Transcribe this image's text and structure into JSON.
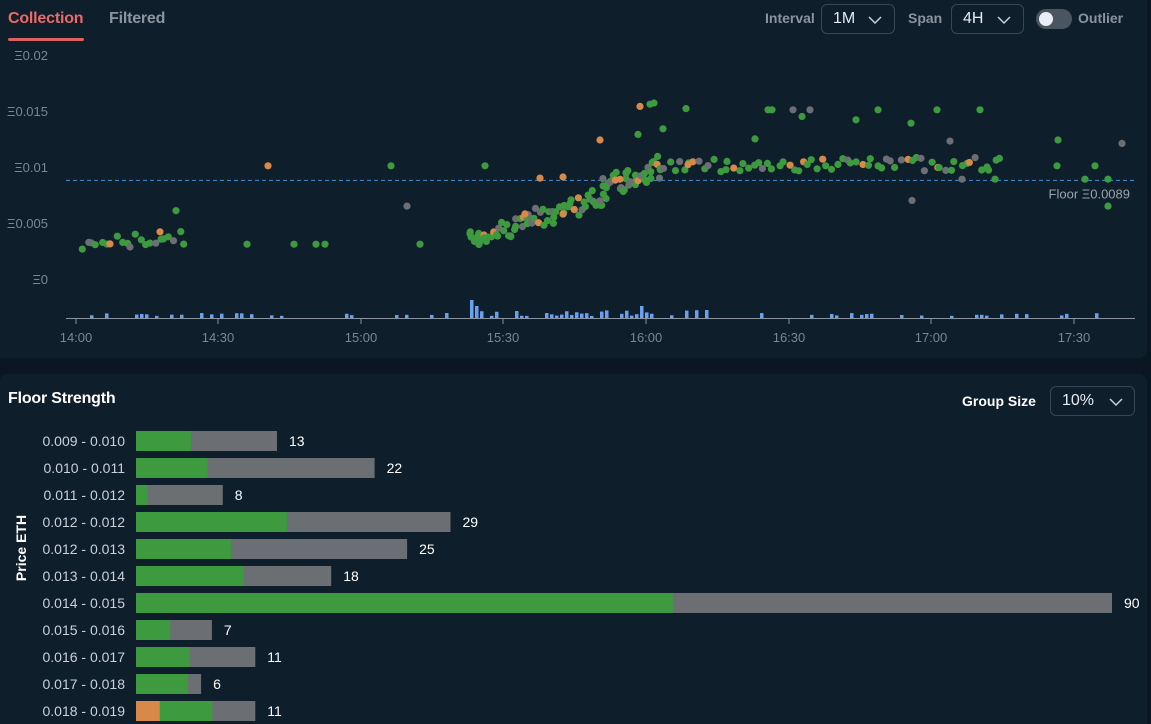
{
  "tabs": [
    {
      "label": "Collection",
      "active": true
    },
    {
      "label": "Filtered",
      "active": false
    }
  ],
  "controls": {
    "interval_label": "Interval",
    "interval_value": "1M",
    "span_label": "Span",
    "span_value": "4H",
    "outlier_label": "Outlier",
    "outlier_on": false
  },
  "colors": {
    "green": "#3d9a3f",
    "grey": "#6b6f73",
    "orange": "#d8894a",
    "blue": "#6aa0f0",
    "floor": "#3f8fd8",
    "accent": "#e06060"
  },
  "scatter_chart": {
    "y_ticks": [
      "Ξ0.02",
      "Ξ0.015",
      "Ξ0.01",
      "Ξ0.005",
      "Ξ0"
    ],
    "x_ticks": [
      "14:00",
      "14:30",
      "15:00",
      "15:30",
      "16:00",
      "16:30",
      "17:00",
      "17:30"
    ],
    "floor_label": "Floor Ξ0.0089",
    "floor_value": 0.0089
  },
  "chart_data": {
    "type": "bar",
    "title": "Floor Strength",
    "ylabel": "Price ETH",
    "categories": [
      "0.009 - 0.010",
      "0.010 - 0.011",
      "0.011 - 0.012",
      "0.012 - 0.012",
      "0.012 - 0.013",
      "0.013 - 0.014",
      "0.014 - 0.015",
      "0.015 - 0.016",
      "0.016 - 0.017",
      "0.017 - 0.018",
      "0.018 - 0.019"
    ],
    "values": [
      13,
      22,
      8,
      29,
      25,
      18,
      90,
      7,
      11,
      6,
      11
    ],
    "green_fraction": [
      0.39,
      0.3,
      0.13,
      0.48,
      0.35,
      0.55,
      0.55,
      0.45,
      0.45,
      0.8,
      0.44
    ],
    "orange_fraction": [
      0,
      0,
      0,
      0,
      0,
      0,
      0,
      0,
      0,
      0,
      0.2
    ]
  },
  "floor_strength": {
    "title": "Floor Strength",
    "group_size_label": "Group Size",
    "group_size_value": "10%",
    "ylabel": "Price ETH"
  }
}
